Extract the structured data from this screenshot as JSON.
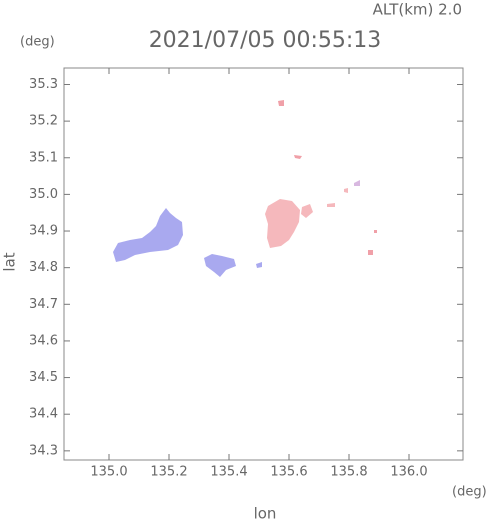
{
  "chart_data": {
    "type": "radar-map",
    "title": "2021/07/05 00:55:13",
    "subtitle": "ALT(km) 2.0",
    "y_unit": "(deg)",
    "x_unit": "(deg)",
    "x_label": "lon",
    "y_label": "lat",
    "xlim": [
      134.85,
      136.18
    ],
    "ylim": [
      34.275,
      35.345
    ],
    "xticks": [
      {
        "value": 135,
        "label": "135.0"
      },
      135.2,
      135.4,
      135.6,
      135.8,
      {
        "value": 136,
        "label": "136.0"
      }
    ],
    "yticks": [
      34.3,
      34.4,
      34.5,
      34.6,
      34.7,
      34.8,
      34.9,
      {
        "value": 35,
        "label": "35.0"
      },
      35.1,
      35.2,
      35.3
    ]
  }
}
